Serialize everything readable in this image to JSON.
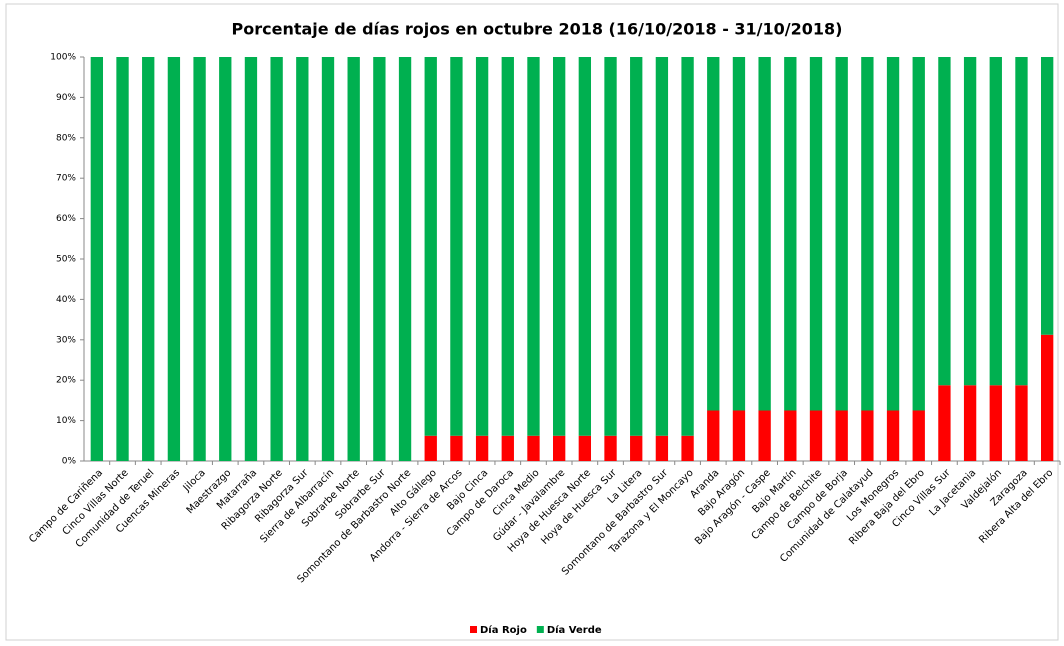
{
  "chart_data": {
    "type": "stacked_bar",
    "title": "Porcentaje de días rojos en octubre 2018 (16/10/2018 - 31/10/2018)",
    "categories": [
      "Campo de Cariñena",
      "Cinco Villas Norte",
      "Comunidad de Teruel",
      "Cuencas Mineras",
      "Jiloca",
      "Maestrazgo",
      "Matarraña",
      "Ribagorza Norte",
      "Ribagorza Sur",
      "Sierra de Albarracín",
      "Sobrarbe Norte",
      "Sobrarbe Sur",
      "Somontano de Barbastro Norte",
      "Alto Gállego",
      "Andorra - Sierra de Arcos",
      "Bajo Cinca",
      "Campo de Daroca",
      "Cinca Medio",
      "Gúdar - Javalambre",
      "Hoya de Huesca Norte",
      "Hoya de Huesca Sur",
      "La Litera",
      "Somontano de Barbastro Sur",
      "Tarazona y El Moncayo",
      "Aranda",
      "Bajo Aragón",
      "Bajo Aragón - Caspe",
      "Bajo Martín",
      "Campo de Belchite",
      "Campo de Borja",
      "Comunidad de Calatayud",
      "Los Monegros",
      "Ribera Baja del Ebro",
      "Cinco Villas Sur",
      "La Jacetania",
      "Valdejalón",
      "Zaragoza",
      "Ribera Alta del Ebro"
    ],
    "series": [
      {
        "name": "Día Rojo",
        "color": "#ff0000",
        "values": [
          0,
          0,
          0,
          0,
          0,
          0,
          0,
          0,
          0,
          0,
          0,
          0,
          0,
          6.25,
          6.25,
          6.25,
          6.25,
          6.25,
          6.25,
          6.25,
          6.25,
          6.25,
          6.25,
          6.25,
          12.5,
          12.5,
          12.5,
          12.5,
          12.5,
          12.5,
          12.5,
          12.5,
          12.5,
          18.75,
          18.75,
          18.75,
          18.75,
          31.25
        ]
      },
      {
        "name": "Día Verde",
        "color": "#00b050",
        "values": [
          100,
          100,
          100,
          100,
          100,
          100,
          100,
          100,
          100,
          100,
          100,
          100,
          100,
          93.75,
          93.75,
          93.75,
          93.75,
          93.75,
          93.75,
          93.75,
          93.75,
          93.75,
          93.75,
          93.75,
          87.5,
          87.5,
          87.5,
          87.5,
          87.5,
          87.5,
          87.5,
          87.5,
          87.5,
          81.25,
          81.25,
          81.25,
          81.25,
          68.75
        ]
      }
    ],
    "ylim": [
      0,
      100
    ],
    "yticks": [
      {
        "value": 0,
        "label": "0%"
      },
      {
        "value": 10,
        "label": "10%"
      },
      {
        "value": 20,
        "label": "20%"
      },
      {
        "value": 30,
        "label": "30%"
      },
      {
        "value": 40,
        "label": "40%"
      },
      {
        "value": 50,
        "label": "50%"
      },
      {
        "value": 60,
        "label": "60%"
      },
      {
        "value": 70,
        "label": "70%"
      },
      {
        "value": 80,
        "label": "80%"
      },
      {
        "value": 90,
        "label": "90%"
      },
      {
        "value": 100,
        "label": "100%"
      }
    ],
    "legend": "bottom"
  }
}
